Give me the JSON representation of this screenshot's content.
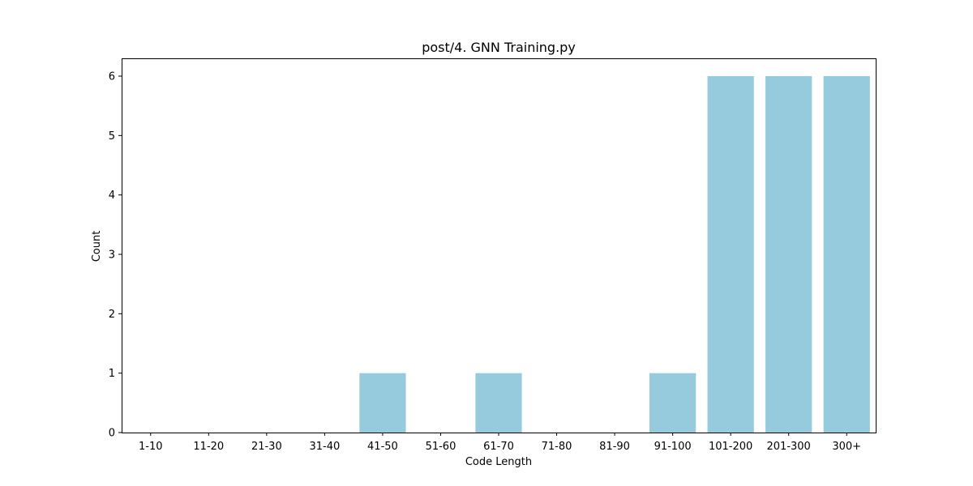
{
  "chart_data": {
    "type": "bar",
    "title": "post/4. GNN Training.py",
    "xlabel": "Code Length",
    "ylabel": "Count",
    "categories": [
      "1-10",
      "11-20",
      "21-30",
      "31-40",
      "41-50",
      "51-60",
      "61-70",
      "71-80",
      "81-90",
      "91-100",
      "101-200",
      "201-300",
      "300+"
    ],
    "values": [
      0,
      0,
      0,
      0,
      1,
      0,
      1,
      0,
      0,
      1,
      6,
      6,
      6
    ],
    "ylim": [
      0,
      6.3
    ],
    "yticks": [
      0,
      1,
      2,
      3,
      4,
      5,
      6
    ],
    "grid": false,
    "legend": "none",
    "bar_color": "#96cadd"
  }
}
